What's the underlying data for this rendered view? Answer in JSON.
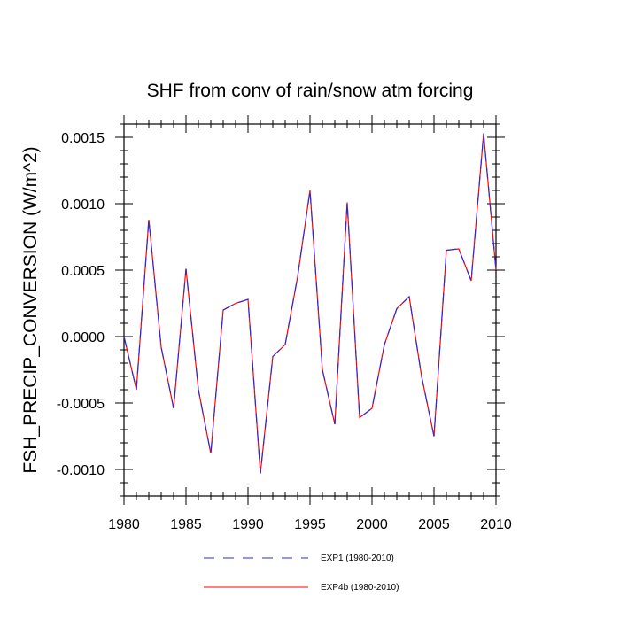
{
  "chart_data": {
    "type": "line",
    "title": "SHF from conv of rain/snow atm forcing",
    "xlabel": "",
    "ylabel": "FSH_PRECIP_CONVERSION  (W/m^2)",
    "xlim": [
      1980,
      2010
    ],
    "ylim": [
      -0.0012,
      0.0016
    ],
    "x_ticks": [
      1980,
      1985,
      1990,
      1995,
      2000,
      2005,
      2010
    ],
    "x_tick_labels": [
      "1980",
      "1985",
      "1990",
      "1995",
      "2000",
      "2005",
      "2010"
    ],
    "y_ticks": [
      -0.001,
      -0.0005,
      0.0,
      0.0005,
      0.001,
      0.0015
    ],
    "y_tick_labels": [
      "-0.0010",
      "-0.0005",
      "0.0000",
      "0.0005",
      "0.0010",
      "0.0015"
    ],
    "grid": false,
    "legend_position": "bottom",
    "x": [
      1980,
      1981,
      1982,
      1983,
      1984,
      1985,
      1986,
      1987,
      1988,
      1989,
      1990,
      1991,
      1992,
      1993,
      1994,
      1995,
      1996,
      1997,
      1998,
      1999,
      2000,
      2001,
      2002,
      2003,
      2004,
      2005,
      2006,
      2007,
      2008,
      2009,
      2010
    ],
    "series": [
      {
        "name": "EXP1 (1980-2010)",
        "color": "#2b2bd6",
        "style": "dashed",
        "values": [
          0.0,
          -0.0004,
          0.00088,
          -8e-05,
          -0.00054,
          0.00051,
          -0.0004,
          -0.00088,
          0.0002,
          0.00025,
          0.00028,
          -0.00103,
          -0.00015,
          -6e-05,
          0.00045,
          0.0011,
          -0.00025,
          -0.00066,
          0.00101,
          -0.00061,
          -0.00054,
          -6e-05,
          0.00021,
          0.0003,
          -0.0003,
          -0.00075,
          0.00065,
          0.00066,
          0.00042,
          0.00153,
          0.0005
        ]
      },
      {
        "name": "EXP4b (1980-2010)",
        "color": "#ff0000",
        "style": "solid",
        "values": [
          0.0,
          -0.0004,
          0.00088,
          -8e-05,
          -0.00054,
          0.00051,
          -0.0004,
          -0.00088,
          0.0002,
          0.00025,
          0.00028,
          -0.00103,
          -0.00015,
          -6e-05,
          0.00045,
          0.0011,
          -0.00025,
          -0.00066,
          0.00101,
          -0.00061,
          -0.00054,
          -6e-05,
          0.00021,
          0.0003,
          -0.0003,
          -0.00075,
          0.00065,
          0.00066,
          0.00042,
          0.00153,
          0.0005
        ]
      }
    ]
  }
}
